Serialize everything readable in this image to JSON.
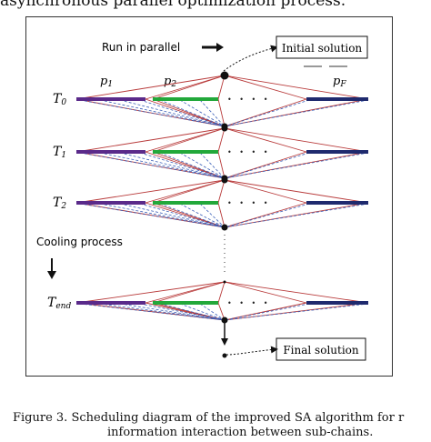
{
  "header_text": "asynchronous parallel optimization process.",
  "diagram": {
    "run_in_parallel": "Run in parallel",
    "initial_solution": "Initial solution",
    "cooling_process": "Cooling process",
    "final_solution": "Final solution",
    "processors": {
      "p1": "p",
      "p1_sub": "1",
      "p2": "p",
      "p2_sub": "2",
      "pf": "p",
      "pf_sub": "F"
    },
    "levels": [
      {
        "T": "T",
        "sub": "0"
      },
      {
        "T": "T",
        "sub": "1"
      },
      {
        "T": "T",
        "sub": "2"
      },
      {
        "T": "T",
        "sub": "end"
      }
    ],
    "dots": "•  •  •  •",
    "colors": {
      "p1": "#5a2a8a",
      "p2": "#22a83a",
      "pf": "#1f2a6e",
      "red_line": "#b83a3a",
      "blue_dash": "#3a5fb8"
    }
  },
  "caption": {
    "line1": "Figure 3.    Scheduling diagram of the improved SA algorithm for r",
    "line2": "information interaction between sub-chains."
  }
}
